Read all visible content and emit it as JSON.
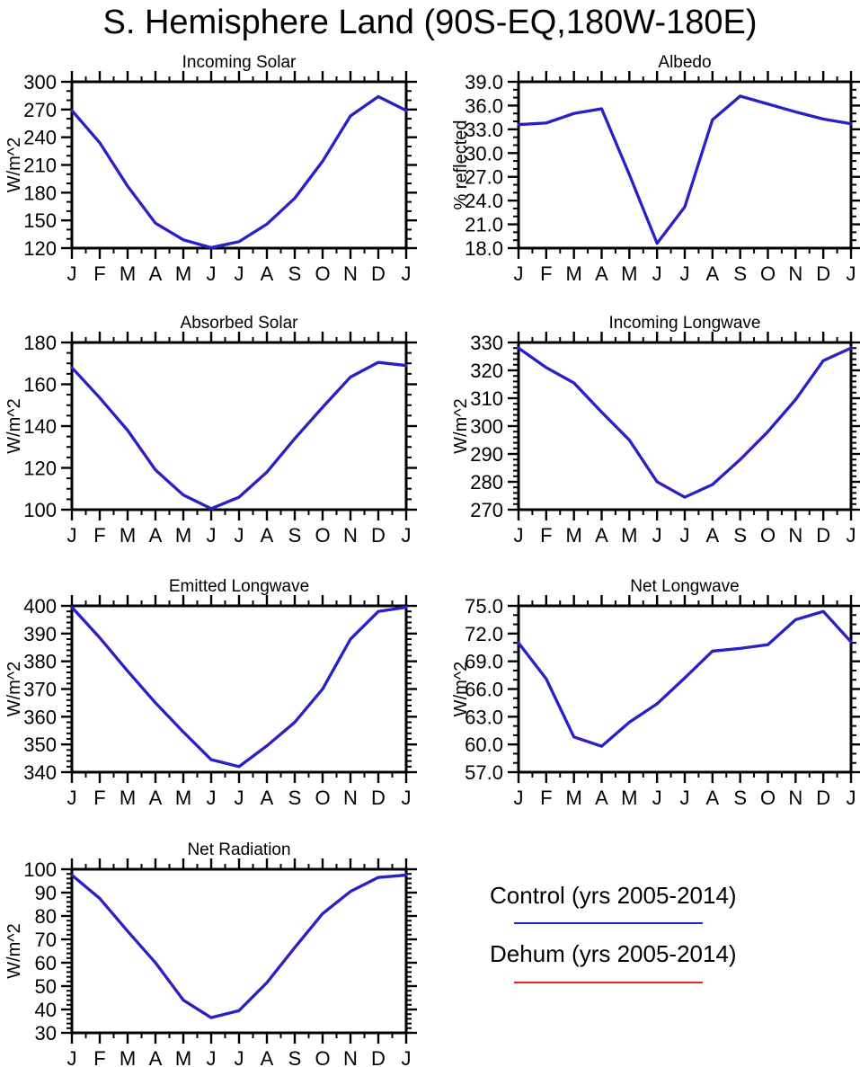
{
  "page_title": "S. Hemisphere Land (90S-EQ,180W-180E)",
  "months": [
    "J",
    "F",
    "M",
    "A",
    "M",
    "J",
    "J",
    "A",
    "S",
    "O",
    "N",
    "D",
    "J"
  ],
  "colors": {
    "control": "#2323cd",
    "dehum": "#ee2222",
    "axis": "#000000"
  },
  "legend": [
    {
      "label": "Control (yrs 2005-2014)",
      "color": "#2323cd"
    },
    {
      "label": "Dehum (yrs 2005-2014)",
      "color": "#ee2222"
    }
  ],
  "chart_data": [
    {
      "type": "line",
      "title": "Incoming Solar",
      "xlabel": "",
      "ylabel": "W/m^2",
      "ylim": [
        120,
        300
      ],
      "ytick_major": 30,
      "ytick_minor": 10,
      "ytick_decimals": 0,
      "grid": false,
      "position": {
        "row": 1,
        "col": "left"
      },
      "categories": [
        "J",
        "F",
        "M",
        "A",
        "M",
        "J",
        "J",
        "A",
        "S",
        "O",
        "N",
        "D",
        "J"
      ],
      "series": [
        {
          "name": "Control (yrs 2005-2014)",
          "color": "#2323cd",
          "values": [
            269,
            234,
            187,
            147,
            129,
            120.5,
            127,
            146,
            174,
            214,
            263,
            284,
            269
          ]
        },
        {
          "name": "Dehum (yrs 2005-2014)",
          "color": "#ee2222",
          "values": [
            269,
            234,
            187,
            147,
            129,
            120.5,
            127,
            146,
            174,
            214,
            263,
            284,
            269
          ]
        }
      ]
    },
    {
      "type": "line",
      "title": "Albedo",
      "xlabel": "",
      "ylabel": "% reflected",
      "ylim": [
        18.0,
        39.0
      ],
      "ytick_major": 3.0,
      "ytick_minor": 1.0,
      "ytick_decimals": 1,
      "grid": false,
      "position": {
        "row": 1,
        "col": "right"
      },
      "categories": [
        "J",
        "F",
        "M",
        "A",
        "M",
        "J",
        "J",
        "A",
        "S",
        "O",
        "N",
        "D",
        "J"
      ],
      "series": [
        {
          "name": "Control (yrs 2005-2014)",
          "color": "#2323cd",
          "values": [
            33.6,
            33.8,
            35.0,
            35.6,
            27.3,
            18.6,
            23.2,
            34.2,
            37.2,
            36.2,
            35.2,
            34.3,
            33.7
          ]
        },
        {
          "name": "Dehum (yrs 2005-2014)",
          "color": "#ee2222",
          "values": [
            33.6,
            33.8,
            35.0,
            35.6,
            27.3,
            18.6,
            23.2,
            34.2,
            37.2,
            36.2,
            35.2,
            34.3,
            33.7
          ]
        }
      ]
    },
    {
      "type": "line",
      "title": "Absorbed Solar",
      "xlabel": "",
      "ylabel": "W/m^2",
      "ylim": [
        100,
        180
      ],
      "ytick_major": 20,
      "ytick_minor": 5,
      "ytick_decimals": 0,
      "grid": false,
      "position": {
        "row": 2,
        "col": "left"
      },
      "categories": [
        "J",
        "F",
        "M",
        "A",
        "M",
        "J",
        "J",
        "A",
        "S",
        "O",
        "N",
        "D",
        "J"
      ],
      "series": [
        {
          "name": "Control (yrs 2005-2014)",
          "color": "#2323cd",
          "values": [
            168,
            153.5,
            138,
            119,
            107,
            100.5,
            106,
            118,
            134,
            149,
            163.5,
            170.5,
            169
          ]
        },
        {
          "name": "Dehum (yrs 2005-2014)",
          "color": "#ee2222",
          "values": [
            168,
            153.5,
            138,
            119,
            107,
            100.5,
            106,
            118,
            134,
            149,
            163.5,
            170.5,
            169
          ]
        }
      ]
    },
    {
      "type": "line",
      "title": "Incoming Longwave",
      "xlabel": "",
      "ylabel": "W/m^2",
      "ylim": [
        270,
        330
      ],
      "ytick_major": 10,
      "ytick_minor": 2,
      "ytick_decimals": 0,
      "grid": false,
      "position": {
        "row": 2,
        "col": "right"
      },
      "categories": [
        "J",
        "F",
        "M",
        "A",
        "M",
        "J",
        "J",
        "A",
        "S",
        "O",
        "N",
        "D",
        "J"
      ],
      "series": [
        {
          "name": "Control (yrs 2005-2014)",
          "color": "#2323cd",
          "values": [
            328,
            321,
            315.5,
            305,
            295,
            280,
            274.5,
            279,
            288,
            298,
            309.5,
            323.5,
            328
          ]
        },
        {
          "name": "Dehum (yrs 2005-2014)",
          "color": "#ee2222",
          "values": [
            328,
            321,
            315.5,
            305,
            295,
            280,
            274.5,
            279,
            288,
            298,
            309.5,
            323.5,
            328
          ]
        }
      ]
    },
    {
      "type": "line",
      "title": "Emitted Longwave",
      "xlabel": "",
      "ylabel": "W/m^2",
      "ylim": [
        340,
        400
      ],
      "ytick_major": 10,
      "ytick_minor": 2,
      "ytick_decimals": 0,
      "grid": false,
      "position": {
        "row": 3,
        "col": "left"
      },
      "categories": [
        "J",
        "F",
        "M",
        "A",
        "M",
        "J",
        "J",
        "A",
        "S",
        "O",
        "N",
        "D",
        "J"
      ],
      "series": [
        {
          "name": "Control (yrs 2005-2014)",
          "color": "#2323cd",
          "values": [
            399.5,
            388.5,
            376.5,
            365,
            354.5,
            344.5,
            342,
            349.5,
            358,
            370,
            388,
            398,
            399.5
          ]
        },
        {
          "name": "Dehum (yrs 2005-2014)",
          "color": "#ee2222",
          "values": [
            399.5,
            388.5,
            376.5,
            365,
            354.5,
            344.5,
            342,
            349.5,
            358,
            370,
            388,
            398,
            399.5
          ]
        }
      ]
    },
    {
      "type": "line",
      "title": "Net Longwave",
      "xlabel": "",
      "ylabel": "W/m^2",
      "ylim": [
        57.0,
        75.0
      ],
      "ytick_major": 3.0,
      "ytick_minor": 1.0,
      "ytick_decimals": 1,
      "grid": false,
      "position": {
        "row": 3,
        "col": "right"
      },
      "categories": [
        "J",
        "F",
        "M",
        "A",
        "M",
        "J",
        "J",
        "A",
        "S",
        "O",
        "N",
        "D",
        "J"
      ],
      "series": [
        {
          "name": "Control (yrs 2005-2014)",
          "color": "#2323cd",
          "values": [
            71.0,
            67.1,
            60.8,
            59.8,
            62.4,
            64.4,
            67.2,
            70.1,
            70.4,
            70.8,
            73.5,
            74.4,
            71.1
          ]
        },
        {
          "name": "Dehum (yrs 2005-2014)",
          "color": "#ee2222",
          "values": [
            71.0,
            67.1,
            60.8,
            59.8,
            62.4,
            64.4,
            67.2,
            70.1,
            70.4,
            70.8,
            73.5,
            74.4,
            71.1
          ]
        }
      ]
    },
    {
      "type": "line",
      "title": "Net Radiation",
      "xlabel": "",
      "ylabel": "W/m^2",
      "ylim": [
        30,
        100
      ],
      "ytick_major": 10,
      "ytick_minor": 2,
      "ytick_decimals": 0,
      "grid": false,
      "position": {
        "row": 4,
        "col": "left"
      },
      "categories": [
        "J",
        "F",
        "M",
        "A",
        "M",
        "J",
        "J",
        "A",
        "S",
        "O",
        "N",
        "D",
        "J"
      ],
      "series": [
        {
          "name": "Control (yrs 2005-2014)",
          "color": "#2323cd",
          "values": [
            97.5,
            87.5,
            73.5,
            60,
            44,
            36.5,
            39.5,
            51.5,
            66.5,
            81,
            90.5,
            96.5,
            97.5
          ]
        },
        {
          "name": "Dehum (yrs 2005-2014)",
          "color": "#ee2222",
          "values": [
            97.5,
            87.5,
            73.5,
            60,
            44,
            36.5,
            39.5,
            51.5,
            66.5,
            81,
            90.5,
            96.5,
            97.5
          ]
        }
      ]
    }
  ]
}
